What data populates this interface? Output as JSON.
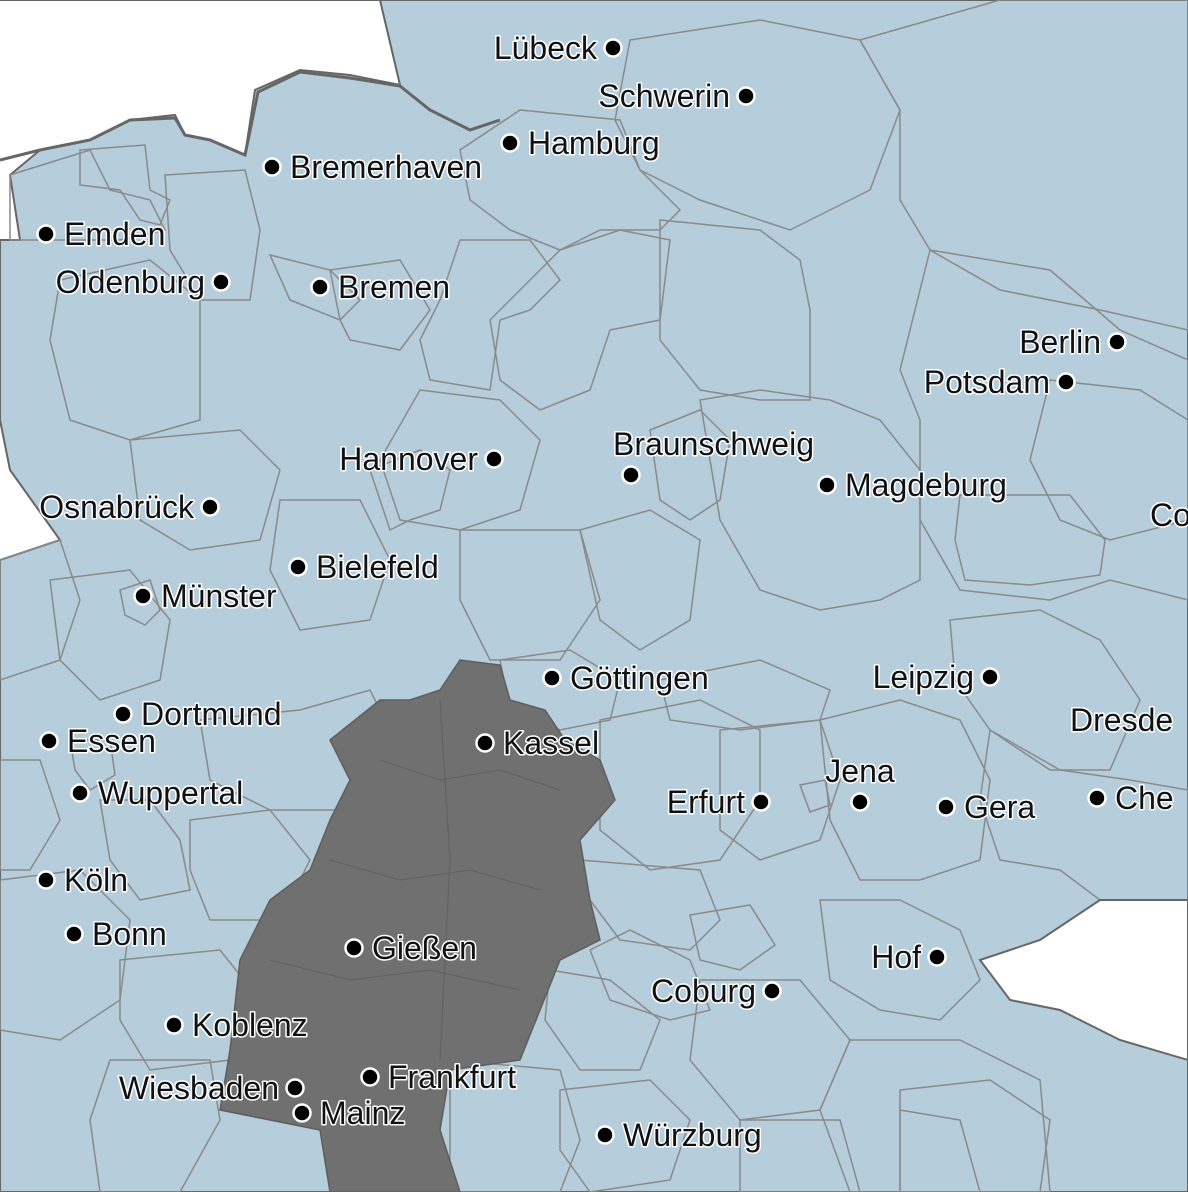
{
  "map": {
    "region": "Germany (north-central)",
    "colors": {
      "water": "#ffffff",
      "no_data": "#707070",
      "dark_blue": "#4d86c0",
      "mid_blue": "#6f9fc8",
      "light_blue": "#93b6d2",
      "pale_blue": "#b6cddc",
      "grey_green": "#cddcd8",
      "pale_green": "#e4ebdc",
      "cream": "#fff3dd",
      "light_salmon": "#fcc9b6",
      "salmon": "#fcaa98",
      "red": "#fb8778",
      "border": "#8a8a8a"
    },
    "cities": [
      {
        "name": "Lübeck"
      },
      {
        "name": "Schwerin"
      },
      {
        "name": "Hamburg"
      },
      {
        "name": "Bremerhaven"
      },
      {
        "name": "Emden"
      },
      {
        "name": "Oldenburg"
      },
      {
        "name": "Bremen"
      },
      {
        "name": "Berlin"
      },
      {
        "name": "Potsdam"
      },
      {
        "name": "Hannover"
      },
      {
        "name": "Braunschweig"
      },
      {
        "name": "Magdeburg"
      },
      {
        "name": "Osnabrück"
      },
      {
        "name": "Bielefeld"
      },
      {
        "name": "Münster"
      },
      {
        "name": "Göttingen"
      },
      {
        "name": "Leipzig"
      },
      {
        "name": "Dortmund"
      },
      {
        "name": "Essen"
      },
      {
        "name": "Kassel"
      },
      {
        "name": "Dresde"
      },
      {
        "name": "Wuppertal"
      },
      {
        "name": "Jena"
      },
      {
        "name": "Erfurt"
      },
      {
        "name": "Gera"
      },
      {
        "name": "Che"
      },
      {
        "name": "Köln"
      },
      {
        "name": "Bonn"
      },
      {
        "name": "Gießen"
      },
      {
        "name": "Hof"
      },
      {
        "name": "Coburg"
      },
      {
        "name": "Koblenz"
      },
      {
        "name": "Frankfurt"
      },
      {
        "name": "Wiesbaden"
      },
      {
        "name": "Mainz"
      },
      {
        "name": "Würzburg"
      },
      {
        "name": "Co"
      }
    ]
  }
}
